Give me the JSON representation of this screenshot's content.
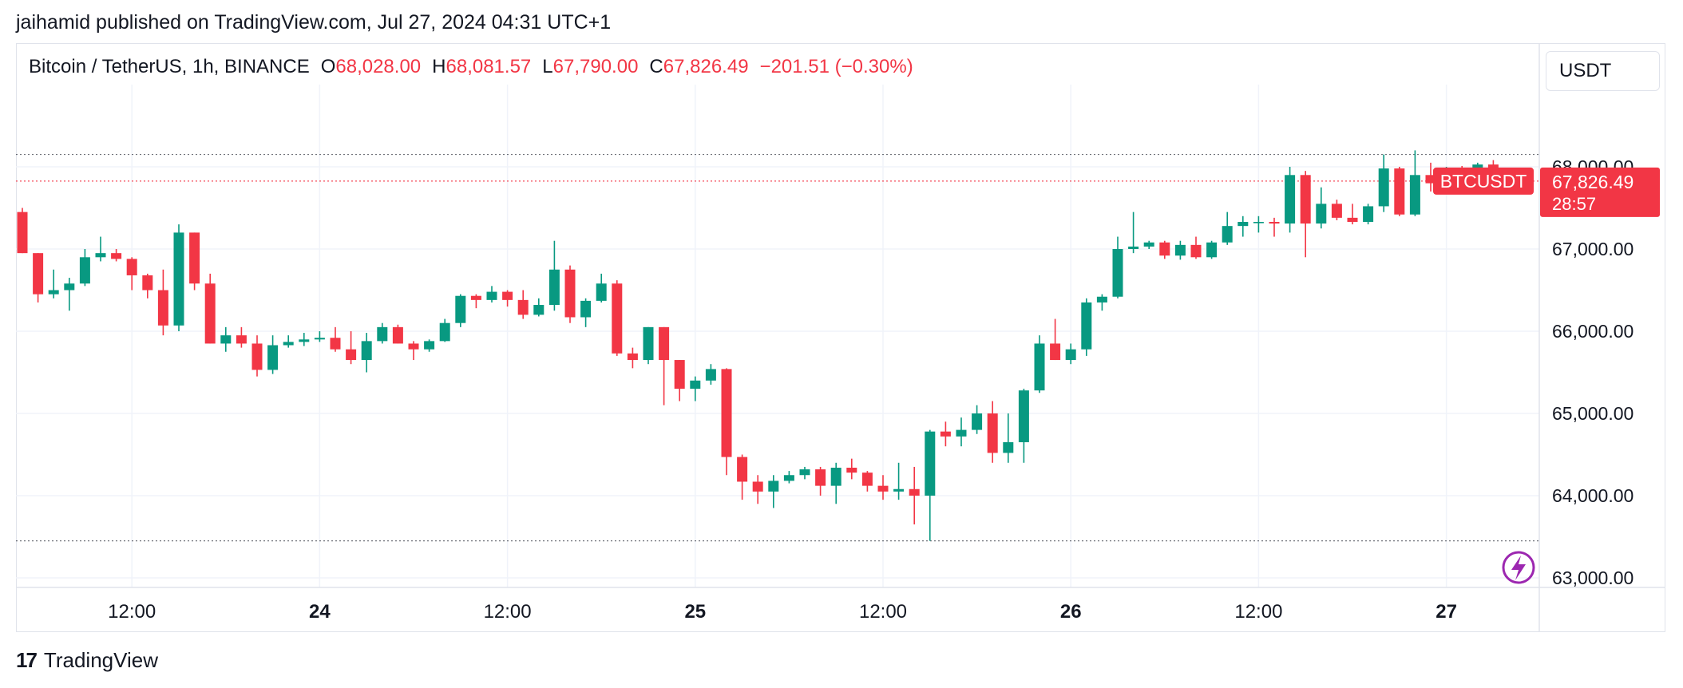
{
  "header": {
    "published": "jaihamid published on TradingView.com, Jul 27, 2024 04:31 UTC+1"
  },
  "legend": {
    "symbol": "Bitcoin / TetherUS, 1h, BINANCE",
    "open_key": "O",
    "open": "68,028.00",
    "high_key": "H",
    "high": "68,081.57",
    "low_key": "L",
    "low": "67,790.00",
    "close_key": "C",
    "close": "67,826.49",
    "change": "−201.51 (−0.30%)"
  },
  "currency_button": "USDT",
  "price_tag": {
    "symbol": "BTCUSDT",
    "price": "67,826.49",
    "countdown": "28:57"
  },
  "footer": {
    "logo_text": "TradingView",
    "logo_mark": "17"
  },
  "colors": {
    "up": "#089981",
    "down": "#f23645",
    "grid": "#f0f3fa",
    "accent": "#9c27b0"
  },
  "chart_data": {
    "type": "candlestick",
    "interval": "1h",
    "ylim": [
      62900,
      68300
    ],
    "y_ticks": [
      "63,000.00",
      "64,000.00",
      "65,000.00",
      "66,000.00",
      "67,000.00",
      "68,000.00"
    ],
    "y_tick_values": [
      63000,
      64000,
      65000,
      66000,
      67000,
      68000
    ],
    "x_ticks": [
      {
        "label": "12:00",
        "index": 7,
        "bold": false
      },
      {
        "label": "24",
        "index": 19,
        "bold": true
      },
      {
        "label": "12:00",
        "index": 31,
        "bold": false
      },
      {
        "label": "25",
        "index": 43,
        "bold": true
      },
      {
        "label": "12:00",
        "index": 55,
        "bold": false
      },
      {
        "label": "26",
        "index": 67,
        "bold": true
      },
      {
        "label": "12:00",
        "index": 79,
        "bold": false
      },
      {
        "label": "27",
        "index": 91,
        "bold": true
      }
    ],
    "hlines": [
      {
        "value": 68150,
        "color": "#131722",
        "style": "dotted"
      },
      {
        "value": 63450,
        "color": "#131722",
        "style": "dotted"
      },
      {
        "value": 67826.49,
        "color": "#f23645",
        "style": "dotted"
      }
    ],
    "candles": [
      {
        "o": 67450,
        "h": 67500,
        "l": 66950,
        "c": 66950
      },
      {
        "o": 66950,
        "h": 66950,
        "l": 66350,
        "c": 66450
      },
      {
        "o": 66450,
        "h": 66750,
        "l": 66400,
        "c": 66500
      },
      {
        "o": 66500,
        "h": 66650,
        "l": 66250,
        "c": 66580
      },
      {
        "o": 66580,
        "h": 67000,
        "l": 66550,
        "c": 66900
      },
      {
        "o": 66900,
        "h": 67150,
        "l": 66850,
        "c": 66950
      },
      {
        "o": 66950,
        "h": 67000,
        "l": 66850,
        "c": 66880
      },
      {
        "o": 66880,
        "h": 66900,
        "l": 66500,
        "c": 66680
      },
      {
        "o": 66680,
        "h": 66700,
        "l": 66400,
        "c": 66500
      },
      {
        "o": 66500,
        "h": 66750,
        "l": 65950,
        "c": 66070
      },
      {
        "o": 66070,
        "h": 67300,
        "l": 66000,
        "c": 67200
      },
      {
        "o": 67200,
        "h": 67200,
        "l": 66500,
        "c": 66580
      },
      {
        "o": 66580,
        "h": 66700,
        "l": 65850,
        "c": 65850
      },
      {
        "o": 65850,
        "h": 66050,
        "l": 65750,
        "c": 65950
      },
      {
        "o": 65950,
        "h": 66050,
        "l": 65800,
        "c": 65850
      },
      {
        "o": 65850,
        "h": 65950,
        "l": 65450,
        "c": 65530
      },
      {
        "o": 65530,
        "h": 65950,
        "l": 65480,
        "c": 65830
      },
      {
        "o": 65830,
        "h": 65950,
        "l": 65800,
        "c": 65870
      },
      {
        "o": 65870,
        "h": 65980,
        "l": 65820,
        "c": 65900
      },
      {
        "o": 65900,
        "h": 66000,
        "l": 65870,
        "c": 65920
      },
      {
        "o": 65920,
        "h": 66050,
        "l": 65750,
        "c": 65780
      },
      {
        "o": 65780,
        "h": 66000,
        "l": 65600,
        "c": 65650
      },
      {
        "o": 65650,
        "h": 65980,
        "l": 65500,
        "c": 65880
      },
      {
        "o": 65880,
        "h": 66100,
        "l": 65850,
        "c": 66050
      },
      {
        "o": 66050,
        "h": 66080,
        "l": 65850,
        "c": 65850
      },
      {
        "o": 65850,
        "h": 65880,
        "l": 65650,
        "c": 65780
      },
      {
        "o": 65780,
        "h": 65900,
        "l": 65750,
        "c": 65880
      },
      {
        "o": 65880,
        "h": 66150,
        "l": 65870,
        "c": 66100
      },
      {
        "o": 66100,
        "h": 66450,
        "l": 66050,
        "c": 66430
      },
      {
        "o": 66430,
        "h": 66450,
        "l": 66280,
        "c": 66380
      },
      {
        "o": 66380,
        "h": 66550,
        "l": 66350,
        "c": 66480
      },
      {
        "o": 66480,
        "h": 66500,
        "l": 66300,
        "c": 66380
      },
      {
        "o": 66380,
        "h": 66500,
        "l": 66150,
        "c": 66200
      },
      {
        "o": 66200,
        "h": 66400,
        "l": 66180,
        "c": 66320
      },
      {
        "o": 66320,
        "h": 67100,
        "l": 66250,
        "c": 66750
      },
      {
        "o": 66750,
        "h": 66800,
        "l": 66100,
        "c": 66170
      },
      {
        "o": 66170,
        "h": 66400,
        "l": 66050,
        "c": 66370
      },
      {
        "o": 66370,
        "h": 66700,
        "l": 66350,
        "c": 66580
      },
      {
        "o": 66580,
        "h": 66620,
        "l": 65700,
        "c": 65730
      },
      {
        "o": 65730,
        "h": 65800,
        "l": 65550,
        "c": 65650
      },
      {
        "o": 65650,
        "h": 66050,
        "l": 65600,
        "c": 66050
      },
      {
        "o": 66050,
        "h": 66050,
        "l": 65100,
        "c": 65650
      },
      {
        "o": 65650,
        "h": 65650,
        "l": 65150,
        "c": 65300
      },
      {
        "o": 65300,
        "h": 65450,
        "l": 65150,
        "c": 65400
      },
      {
        "o": 65400,
        "h": 65600,
        "l": 65350,
        "c": 65540
      },
      {
        "o": 65540,
        "h": 65550,
        "l": 64250,
        "c": 64470
      },
      {
        "o": 64470,
        "h": 64500,
        "l": 63950,
        "c": 64170
      },
      {
        "o": 64170,
        "h": 64250,
        "l": 63900,
        "c": 64050
      },
      {
        "o": 64050,
        "h": 64250,
        "l": 63850,
        "c": 64180
      },
      {
        "o": 64180,
        "h": 64300,
        "l": 64150,
        "c": 64250
      },
      {
        "o": 64250,
        "h": 64350,
        "l": 64200,
        "c": 64320
      },
      {
        "o": 64320,
        "h": 64350,
        "l": 64000,
        "c": 64120
      },
      {
        "o": 64120,
        "h": 64400,
        "l": 63900,
        "c": 64340
      },
      {
        "o": 64340,
        "h": 64450,
        "l": 64200,
        "c": 64280
      },
      {
        "o": 64280,
        "h": 64300,
        "l": 64050,
        "c": 64120
      },
      {
        "o": 64120,
        "h": 64250,
        "l": 63950,
        "c": 64050
      },
      {
        "o": 64050,
        "h": 64400,
        "l": 63950,
        "c": 64080
      },
      {
        "o": 64080,
        "h": 64350,
        "l": 63650,
        "c": 64000
      },
      {
        "o": 64000,
        "h": 64800,
        "l": 63450,
        "c": 64780
      },
      {
        "o": 64780,
        "h": 64900,
        "l": 64600,
        "c": 64720
      },
      {
        "o": 64720,
        "h": 64950,
        "l": 64600,
        "c": 64800
      },
      {
        "o": 64800,
        "h": 65100,
        "l": 64750,
        "c": 65000
      },
      {
        "o": 65000,
        "h": 65150,
        "l": 64400,
        "c": 64520
      },
      {
        "o": 64520,
        "h": 65000,
        "l": 64400,
        "c": 64650
      },
      {
        "o": 64650,
        "h": 65300,
        "l": 64400,
        "c": 65280
      },
      {
        "o": 65280,
        "h": 65950,
        "l": 65250,
        "c": 65850
      },
      {
        "o": 65850,
        "h": 66150,
        "l": 65650,
        "c": 65650
      },
      {
        "o": 65650,
        "h": 65850,
        "l": 65600,
        "c": 65780
      },
      {
        "o": 65780,
        "h": 66400,
        "l": 65700,
        "c": 66350
      },
      {
        "o": 66350,
        "h": 66450,
        "l": 66250,
        "c": 66420
      },
      {
        "o": 66420,
        "h": 67150,
        "l": 66400,
        "c": 67000
      },
      {
        "o": 67000,
        "h": 67450,
        "l": 66950,
        "c": 67030
      },
      {
        "o": 67030,
        "h": 67100,
        "l": 67000,
        "c": 67080
      },
      {
        "o": 67080,
        "h": 67100,
        "l": 66880,
        "c": 66920
      },
      {
        "o": 66920,
        "h": 67100,
        "l": 66870,
        "c": 67050
      },
      {
        "o": 67050,
        "h": 67150,
        "l": 66880,
        "c": 66900
      },
      {
        "o": 66900,
        "h": 67100,
        "l": 66880,
        "c": 67080
      },
      {
        "o": 67080,
        "h": 67450,
        "l": 67050,
        "c": 67280
      },
      {
        "o": 67280,
        "h": 67400,
        "l": 67150,
        "c": 67330
      },
      {
        "o": 67330,
        "h": 67400,
        "l": 67200,
        "c": 67330
      },
      {
        "o": 67330,
        "h": 67380,
        "l": 67150,
        "c": 67310
      },
      {
        "o": 67310,
        "h": 68000,
        "l": 67200,
        "c": 67900
      },
      {
        "o": 67900,
        "h": 67950,
        "l": 66900,
        "c": 67310
      },
      {
        "o": 67310,
        "h": 67750,
        "l": 67250,
        "c": 67550
      },
      {
        "o": 67550,
        "h": 67600,
        "l": 67350,
        "c": 67380
      },
      {
        "o": 67380,
        "h": 67550,
        "l": 67300,
        "c": 67330
      },
      {
        "o": 67330,
        "h": 67550,
        "l": 67300,
        "c": 67520
      },
      {
        "o": 67520,
        "h": 68150,
        "l": 67450,
        "c": 67980
      },
      {
        "o": 67980,
        "h": 68000,
        "l": 67400,
        "c": 67420
      },
      {
        "o": 67420,
        "h": 68200,
        "l": 67400,
        "c": 67900
      },
      {
        "o": 67900,
        "h": 68050,
        "l": 67700,
        "c": 67800
      },
      {
        "o": 67800,
        "h": 68000,
        "l": 67750,
        "c": 67950
      },
      {
        "o": 67950,
        "h": 68010,
        "l": 67700,
        "c": 67700
      },
      {
        "o": 67700,
        "h": 68050,
        "l": 67680,
        "c": 68028
      },
      {
        "o": 68028,
        "h": 68081.57,
        "l": 67790,
        "c": 67826.49
      }
    ]
  }
}
